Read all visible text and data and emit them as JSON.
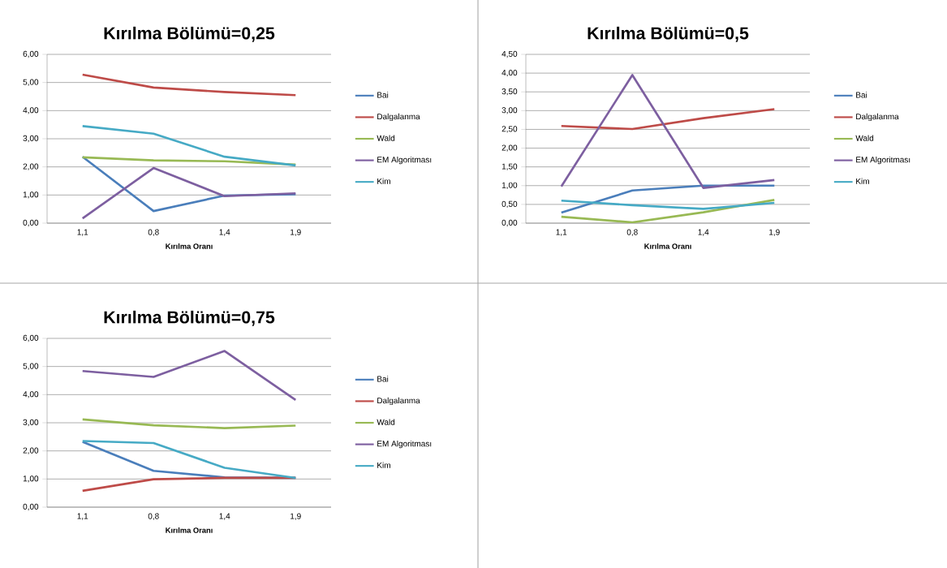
{
  "chart_data": [
    {
      "type": "line",
      "title": "Kırılma Bölümü=0,25",
      "xlabel": "Kırılma Oranı",
      "categories": [
        "1,1",
        "0,8",
        "1,4",
        "1,9"
      ],
      "ylim": [
        0,
        6
      ],
      "yticks": [
        {
          "value": 0,
          "label": "0,00"
        },
        {
          "value": 1,
          "label": "1,00"
        },
        {
          "value": 2,
          "label": "2,00"
        },
        {
          "value": 3,
          "label": "3,00"
        },
        {
          "value": 4,
          "label": "4,00"
        },
        {
          "value": 5,
          "label": "5,00"
        },
        {
          "value": 6,
          "label": "6,00"
        }
      ],
      "grid": "y",
      "legend": "right",
      "series": [
        {
          "name": "Bai",
          "color": "#4a7ebb",
          "values": [
            2.36,
            0.43,
            0.98,
            1.03
          ]
        },
        {
          "name": "Dalgalanma",
          "color": "#be4b48",
          "values": [
            5.28,
            4.82,
            4.66,
            4.55
          ]
        },
        {
          "name": "Wald",
          "color": "#98b954",
          "values": [
            2.34,
            2.23,
            2.2,
            2.08
          ]
        },
        {
          "name": "EM Algoritması",
          "color": "#7d5fa0",
          "values": [
            0.17,
            1.96,
            0.96,
            1.06
          ]
        },
        {
          "name": "Kim",
          "color": "#46aac5",
          "values": [
            3.45,
            3.18,
            2.36,
            2.05
          ]
        }
      ]
    },
    {
      "type": "line",
      "title": "Kırılma Bölümü=0,5",
      "xlabel": "Kırılma Oranı",
      "categories": [
        "1,1",
        "0,8",
        "1,4",
        "1,9"
      ],
      "ylim": [
        0,
        4.5
      ],
      "yticks": [
        {
          "value": 0,
          "label": "0,00"
        },
        {
          "value": 0.5,
          "label": "0,50"
        },
        {
          "value": 1,
          "label": "1,00"
        },
        {
          "value": 1.5,
          "label": "1,50"
        },
        {
          "value": 2,
          "label": "2,00"
        },
        {
          "value": 2.5,
          "label": "2,50"
        },
        {
          "value": 3,
          "label": "3,00"
        },
        {
          "value": 3.5,
          "label": "3,50"
        },
        {
          "value": 4,
          "label": "4,00"
        },
        {
          "value": 4.5,
          "label": "4,50"
        }
      ],
      "grid": "y",
      "legend": "right",
      "series": [
        {
          "name": "Bai",
          "color": "#4a7ebb",
          "values": [
            0.28,
            0.87,
            1.0,
            1.0
          ]
        },
        {
          "name": "Dalgalanma",
          "color": "#be4b48",
          "values": [
            2.59,
            2.51,
            2.8,
            3.04
          ]
        },
        {
          "name": "Wald",
          "color": "#98b954",
          "values": [
            0.17,
            0.02,
            0.29,
            0.62
          ]
        },
        {
          "name": "EM Algoritması",
          "color": "#7d5fa0",
          "values": [
            0.98,
            3.95,
            0.94,
            1.15
          ]
        },
        {
          "name": "Kim",
          "color": "#46aac5",
          "values": [
            0.6,
            0.48,
            0.38,
            0.54
          ]
        }
      ]
    },
    {
      "type": "line",
      "title": "Kırılma Bölümü=0,75",
      "xlabel": "Kırılma Oranı",
      "categories": [
        "1,1",
        "0,8",
        "1,4",
        "1,9"
      ],
      "ylim": [
        0,
        6
      ],
      "yticks": [
        {
          "value": 0,
          "label": "0,00"
        },
        {
          "value": 1,
          "label": "1,00"
        },
        {
          "value": 2,
          "label": "2,00"
        },
        {
          "value": 3,
          "label": "3,00"
        },
        {
          "value": 4,
          "label": "4,00"
        },
        {
          "value": 5,
          "label": "5,00"
        },
        {
          "value": 6,
          "label": "6,00"
        }
      ],
      "grid": "y",
      "legend": "right",
      "series": [
        {
          "name": "Bai",
          "color": "#4a7ebb",
          "values": [
            2.32,
            1.29,
            1.06,
            1.04
          ]
        },
        {
          "name": "Dalgalanma",
          "color": "#be4b48",
          "values": [
            0.58,
            0.99,
            1.04,
            1.04
          ]
        },
        {
          "name": "Wald",
          "color": "#98b954",
          "values": [
            3.12,
            2.91,
            2.81,
            2.9
          ]
        },
        {
          "name": "EM Algoritması",
          "color": "#7d5fa0",
          "values": [
            4.84,
            4.63,
            5.55,
            3.81
          ]
        },
        {
          "name": "Kim",
          "color": "#46aac5",
          "values": [
            2.35,
            2.28,
            1.4,
            1.04
          ]
        }
      ]
    }
  ]
}
